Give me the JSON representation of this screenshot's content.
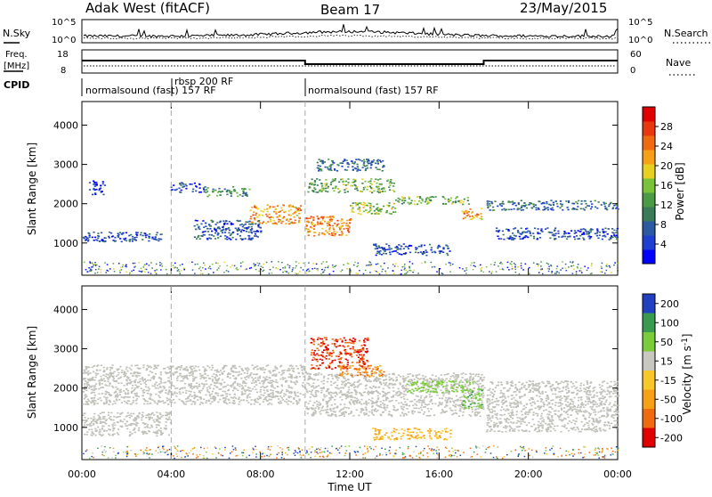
{
  "header": {
    "station": "Adak West (fitACF)",
    "beam": "Beam 17",
    "date": "23/May/2015"
  },
  "noise_panel": {
    "left_label": "N.Sky",
    "right_label": "N.Search",
    "left_ticks": [
      "10^5",
      "10^0"
    ],
    "right_ticks": [
      "10^5",
      "10^0"
    ]
  },
  "freq_panel": {
    "left_label_line1": "Freq.",
    "left_label_line2": "[MHz]",
    "right_label": "Nave",
    "left_ticks": [
      "18",
      "8"
    ],
    "right_ticks": [
      "60",
      "0"
    ],
    "freq_steps": [
      {
        "start": 0,
        "end": 10,
        "value": 14
      },
      {
        "start": 10,
        "end": 18,
        "value": 12
      },
      {
        "start": 18,
        "end": 24,
        "value": 14
      }
    ]
  },
  "cpid_panel": {
    "label": "CPID",
    "segments": [
      {
        "start": 0,
        "end": 4,
        "label": "normalsound (fast) 157 RF"
      },
      {
        "start": 4,
        "end": 10,
        "label": "rbsp 200 RF"
      },
      {
        "start": 10,
        "end": 24,
        "label": "normalsound (fast) 157 RF"
      }
    ]
  },
  "colors": {
    "power_scale": [
      "#0000ff",
      "#1f3fd0",
      "#2c5aa0",
      "#3a7a58",
      "#4a9a46",
      "#7ac23a",
      "#e8d020",
      "#f6a018",
      "#f06a10",
      "#e83810",
      "#e00000"
    ],
    "velocity_scale": [
      "#e00000",
      "#f06a10",
      "#f6a018",
      "#f8c828",
      "#c8c8c0",
      "#7acc3a",
      "#3a9a50",
      "#2040c0"
    ],
    "ground_scatter": "#c0c0b8"
  },
  "chart_data": [
    {
      "type": "heatmap",
      "id": "power",
      "xlabel": "",
      "ylabel": "Slant Range [km]",
      "xlim": [
        0,
        24
      ],
      "ylim": [
        180,
        4600
      ],
      "xticks": [
        "00:00",
        "04:00",
        "08:00",
        "12:00",
        "16:00",
        "20:00",
        "00:00"
      ],
      "yticks": [
        1000,
        2000,
        3000,
        4000
      ],
      "colorbar": {
        "label": "Power [dB]",
        "ticks": [
          4,
          8,
          12,
          16,
          20,
          24,
          28
        ],
        "range": [
          0,
          32
        ]
      },
      "mode_change_hours": [
        4,
        10
      ],
      "bands": [
        {
          "x": [
            0.0,
            3.6
          ],
          "y": [
            1050,
            1300
          ],
          "value": 6
        },
        {
          "x": [
            0.3,
            1.0
          ],
          "y": [
            2250,
            2600
          ],
          "value": 4
        },
        {
          "x": [
            3.9,
            5.5
          ],
          "y": [
            2300,
            2550
          ],
          "value": 6
        },
        {
          "x": [
            5.5,
            7.5
          ],
          "y": [
            2200,
            2450
          ],
          "value": 12
        },
        {
          "x": [
            7.5,
            9.8
          ],
          "y": [
            1500,
            2000
          ],
          "value": 22
        },
        {
          "x": [
            10.0,
            12.0
          ],
          "y": [
            1200,
            1700
          ],
          "value": 24
        },
        {
          "x": [
            12.0,
            14.0
          ],
          "y": [
            1750,
            2050
          ],
          "value": 16
        },
        {
          "x": [
            10.1,
            14.0
          ],
          "y": [
            2300,
            2650
          ],
          "value": 14
        },
        {
          "x": [
            14.0,
            17.5
          ],
          "y": [
            2000,
            2200
          ],
          "value": 14
        },
        {
          "x": [
            17.0,
            17.9
          ],
          "y": [
            1600,
            1900
          ],
          "value": 22
        },
        {
          "x": [
            18.1,
            24.0
          ],
          "y": [
            1850,
            2100
          ],
          "value": 8
        },
        {
          "x": [
            18.5,
            24.0
          ],
          "y": [
            1100,
            1400
          ],
          "value": 6
        },
        {
          "x": [
            13.0,
            16.5
          ],
          "y": [
            700,
            1000
          ],
          "value": 6
        },
        {
          "x": [
            5.0,
            8.0
          ],
          "y": [
            1100,
            1600
          ],
          "value": 6
        },
        {
          "x": [
            10.5,
            13.5
          ],
          "y": [
            2850,
            3150
          ],
          "value": 8
        }
      ]
    },
    {
      "type": "heatmap",
      "id": "velocity",
      "xlabel": "Time UT",
      "ylabel": "Slant Range [km]",
      "xlim": [
        0,
        24
      ],
      "ylim": [
        180,
        4600
      ],
      "xticks": [
        "00:00",
        "04:00",
        "08:00",
        "12:00",
        "16:00",
        "20:00",
        "00:00"
      ],
      "yticks": [
        1000,
        2000,
        3000,
        4000
      ],
      "colorbar": {
        "label": "Velocity [m s^-1]",
        "ticks": [
          200,
          100,
          50,
          15,
          -15,
          -50,
          -100,
          -200
        ]
      },
      "mode_change_hours": [
        4,
        10
      ],
      "bands": [
        {
          "x": [
            0.0,
            10.0
          ],
          "y": [
            1600,
            2600
          ],
          "value": 0,
          "kind": "ground"
        },
        {
          "x": [
            10.0,
            18.0
          ],
          "y": [
            1300,
            2400
          ],
          "value": 0,
          "kind": "ground"
        },
        {
          "x": [
            18.1,
            24.0
          ],
          "y": [
            900,
            2200
          ],
          "value": 0,
          "kind": "ground"
        },
        {
          "x": [
            0.0,
            4.0
          ],
          "y": [
            800,
            1400
          ],
          "value": 0,
          "kind": "ground"
        },
        {
          "x": [
            10.2,
            12.8
          ],
          "y": [
            2500,
            3300
          ],
          "value": -200
        },
        {
          "x": [
            11.5,
            13.5
          ],
          "y": [
            2300,
            2600
          ],
          "value": -100
        },
        {
          "x": [
            13.0,
            16.5
          ],
          "y": [
            700,
            1000
          ],
          "value": -50
        },
        {
          "x": [
            14.5,
            17.5
          ],
          "y": [
            1900,
            2200
          ],
          "value": 30
        },
        {
          "x": [
            17.0,
            17.9
          ],
          "y": [
            1500,
            2000
          ],
          "value": 40
        }
      ]
    }
  ]
}
